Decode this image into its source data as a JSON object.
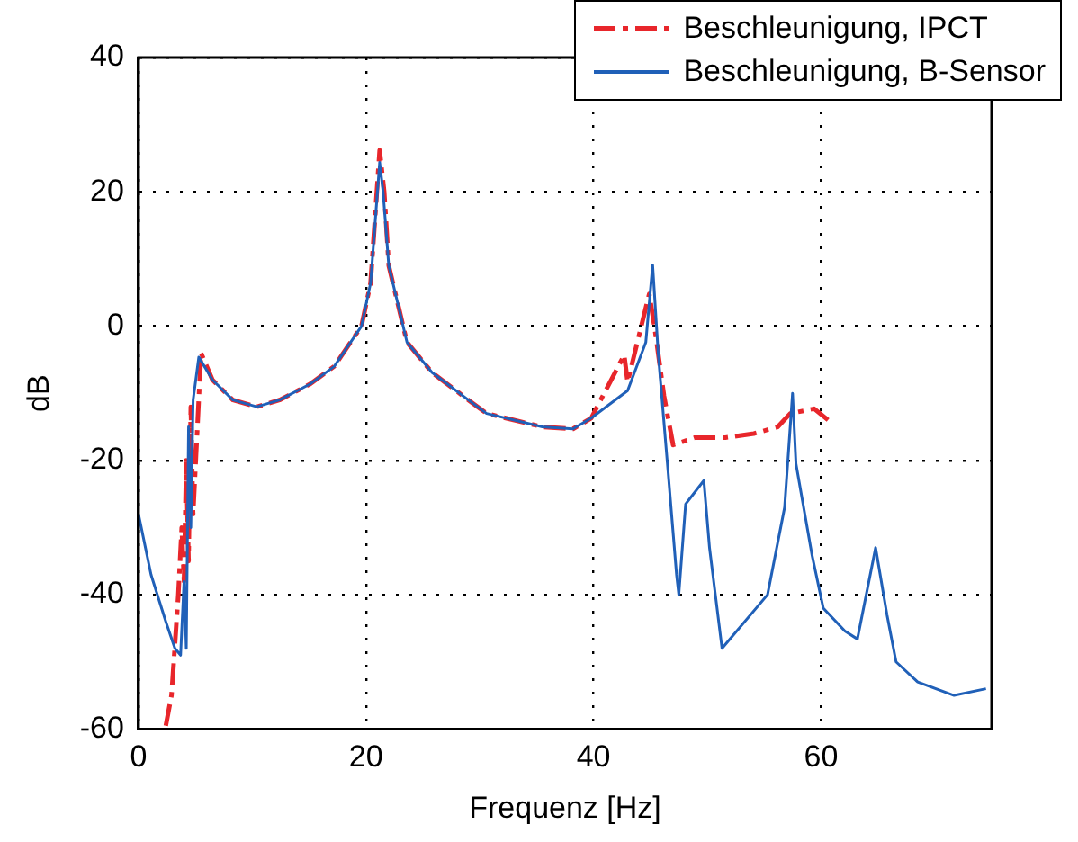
{
  "chart_data": {
    "type": "line",
    "xlabel": "Frequenz [Hz]",
    "ylabel": "dB",
    "xlim": [
      0,
      75
    ],
    "xticks": [
      0,
      20,
      40,
      60
    ],
    "ylim": [
      -60,
      40
    ],
    "yticks": [
      -60,
      -40,
      -20,
      0,
      20,
      40
    ],
    "grid": true,
    "legend": "top right",
    "marker": "none",
    "series": [
      {
        "name": "Beschleunigung, IPCT",
        "color": "#e8262b",
        "line_style": "dashed",
        "x": [
          2.4,
          2.9,
          3.0,
          3.5,
          3.8,
          4.0,
          4.2,
          4.4,
          4.6,
          4.8,
          5.5,
          6.5,
          8.3,
          10.4,
          12.4,
          15.1,
          17.2,
          19.6,
          20.4,
          21.2,
          21.6,
          22.0,
          23.6,
          25.8,
          29,
          30.6,
          35.5,
          38.2,
          39.8,
          42.7,
          43.0,
          44.9,
          45.4,
          46.2,
          47.0,
          48.9,
          51.6,
          54.1,
          56.2,
          57.3,
          59.4,
          61.0
        ],
        "values": [
          -59.5,
          -55,
          -52.5,
          -40,
          -30,
          -38,
          -20,
          -35,
          -12,
          -28,
          -4,
          -8,
          -11,
          -12,
          -11,
          -8.6,
          -6,
          0,
          6.4,
          26.2,
          20,
          9,
          -2.4,
          -6.9,
          -11,
          -13,
          -15,
          -15.3,
          -13.7,
          -4.3,
          -8.3,
          4.8,
          -0.5,
          -10.4,
          -17.7,
          -16.6,
          -16.6,
          -16,
          -15,
          -13,
          -12.3,
          -14.5
        ]
      },
      {
        "name": "Beschleunigung, B-Sensor",
        "color": "#2060b8",
        "x": [
          0,
          1.1,
          2.4,
          3.2,
          3.7,
          4.0,
          4.2,
          4.4,
          4.6,
          4.8,
          5.3,
          6.5,
          8.3,
          10.4,
          12.4,
          15.1,
          17.2,
          19.6,
          20.4,
          21.2,
          21.5,
          22.0,
          23.6,
          25.8,
          29,
          30.6,
          35.5,
          38.2,
          39.8,
          43,
          44.6,
          45.2,
          45.7,
          46.5,
          47.3,
          47.5,
          48.1,
          49.7,
          50.2,
          51.3,
          55.3,
          56.8,
          57.5,
          57.8,
          59.2,
          60.2,
          62.1,
          63.2,
          64.8,
          65.8,
          66.6,
          68.5,
          71.7,
          74.5
        ],
        "values": [
          -28,
          -37,
          -44,
          -48,
          -49,
          -38,
          -48,
          -15,
          -30,
          -11,
          -4.6,
          -8,
          -11,
          -12,
          -11,
          -8.6,
          -6,
          0,
          6.4,
          24.4,
          20,
          9,
          -2.4,
          -6.9,
          -11,
          -13,
          -15,
          -15.3,
          -13.7,
          -9.6,
          -2.4,
          9.1,
          -4.3,
          -20.5,
          -37,
          -40,
          -26.5,
          -23,
          -33,
          -48,
          -40,
          -27,
          -10,
          -20.5,
          -34,
          -42,
          -45.4,
          -46.6,
          -33,
          -43,
          -50,
          -53,
          -55,
          -54
        ]
      }
    ]
  }
}
